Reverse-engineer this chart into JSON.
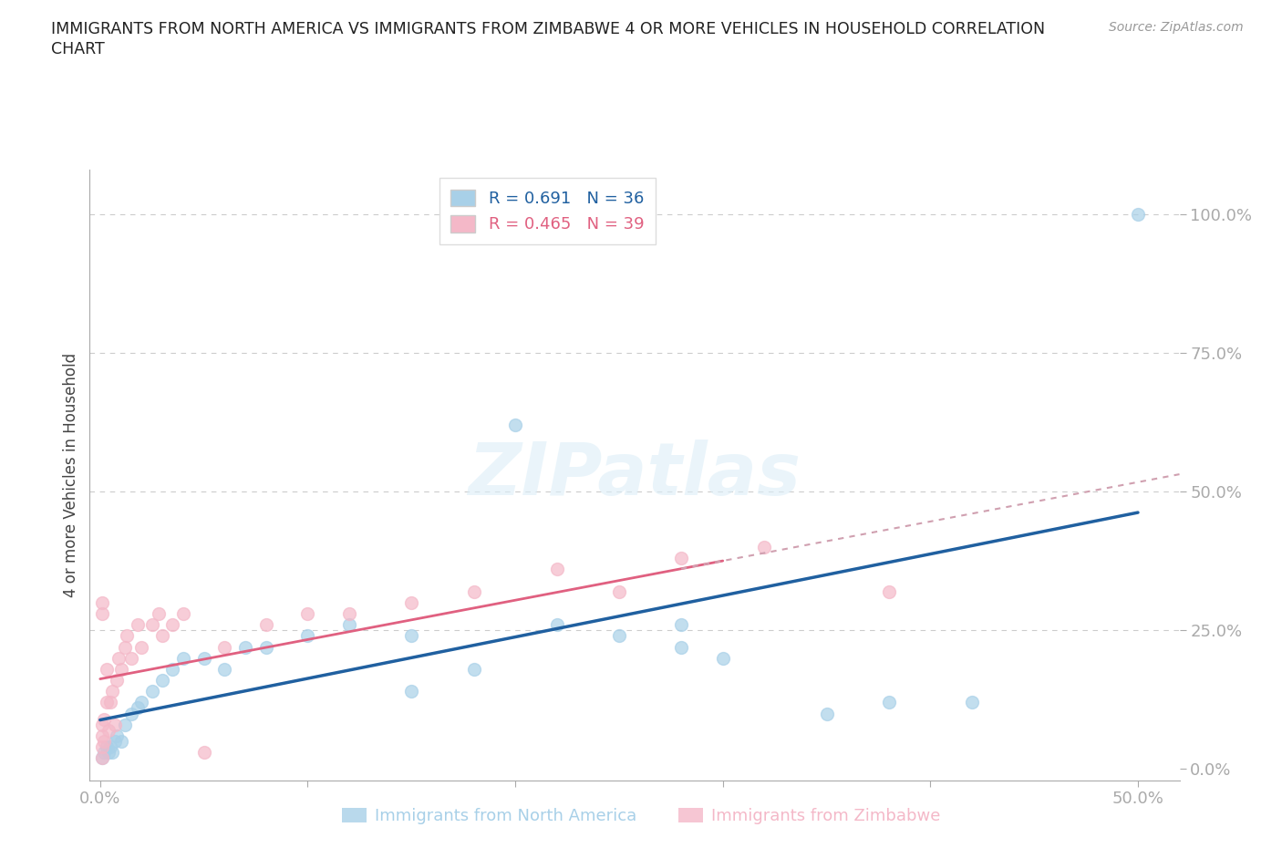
{
  "title_line1": "IMMIGRANTS FROM NORTH AMERICA VS IMMIGRANTS FROM ZIMBABWE 4 OR MORE VEHICLES IN HOUSEHOLD CORRELATION",
  "title_line2": "CHART",
  "source": "Source: ZipAtlas.com",
  "xlabel_blue": "Immigrants from North America",
  "xlabel_pink": "Immigrants from Zimbabwe",
  "ylabel": "4 or more Vehicles in Household",
  "R_blue": 0.691,
  "N_blue": 36,
  "R_pink": 0.465,
  "N_pink": 39,
  "xlim": [
    -0.005,
    0.52
  ],
  "ylim": [
    -0.02,
    1.08
  ],
  "xticks": [
    0.0,
    0.1,
    0.2,
    0.3,
    0.4,
    0.5
  ],
  "yticks": [
    0.0,
    0.25,
    0.5,
    0.75,
    1.0
  ],
  "ytick_labels": [
    "0.0%",
    "25.0%",
    "50.0%",
    "75.0%",
    "100.0%"
  ],
  "xtick_labels": [
    "0.0%",
    "",
    "",
    "",
    "",
    "50.0%"
  ],
  "color_blue": "#a8d0e8",
  "color_pink": "#f4b8c8",
  "line_blue": "#2060a0",
  "line_pink": "#e06080",
  "line_pink_ext": "#d0a0b0",
  "background_color": "#ffffff",
  "blue_x": [
    0.001,
    0.002,
    0.003,
    0.004,
    0.005,
    0.006,
    0.007,
    0.008,
    0.01,
    0.012,
    0.015,
    0.018,
    0.02,
    0.025,
    0.03,
    0.035,
    0.04,
    0.05,
    0.06,
    0.07,
    0.08,
    0.1,
    0.12,
    0.15,
    0.18,
    0.22,
    0.25,
    0.28,
    0.2,
    0.28,
    0.35,
    0.42,
    0.5,
    0.38,
    0.3,
    0.15
  ],
  "blue_y": [
    0.02,
    0.03,
    0.04,
    0.03,
    0.04,
    0.03,
    0.05,
    0.06,
    0.05,
    0.08,
    0.1,
    0.11,
    0.12,
    0.14,
    0.16,
    0.18,
    0.2,
    0.2,
    0.18,
    0.22,
    0.22,
    0.24,
    0.26,
    0.24,
    0.18,
    0.26,
    0.24,
    0.22,
    0.62,
    0.26,
    0.1,
    0.12,
    1.0,
    0.12,
    0.2,
    0.14
  ],
  "pink_x": [
    0.001,
    0.001,
    0.001,
    0.001,
    0.002,
    0.002,
    0.003,
    0.003,
    0.004,
    0.005,
    0.006,
    0.007,
    0.008,
    0.009,
    0.01,
    0.012,
    0.013,
    0.015,
    0.018,
    0.02,
    0.025,
    0.028,
    0.03,
    0.035,
    0.04,
    0.05,
    0.06,
    0.08,
    0.1,
    0.12,
    0.15,
    0.18,
    0.22,
    0.25,
    0.28,
    0.32,
    0.38,
    0.001,
    0.001
  ],
  "pink_y": [
    0.02,
    0.04,
    0.06,
    0.08,
    0.05,
    0.09,
    0.12,
    0.18,
    0.07,
    0.12,
    0.14,
    0.08,
    0.16,
    0.2,
    0.18,
    0.22,
    0.24,
    0.2,
    0.26,
    0.22,
    0.26,
    0.28,
    0.24,
    0.26,
    0.28,
    0.03,
    0.22,
    0.26,
    0.28,
    0.28,
    0.3,
    0.32,
    0.36,
    0.32,
    0.38,
    0.4,
    0.32,
    0.28,
    0.3
  ]
}
